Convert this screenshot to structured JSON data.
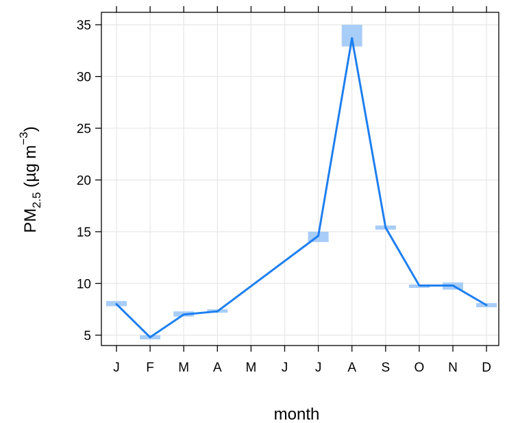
{
  "chart_data": {
    "type": "line",
    "title": "",
    "xlabel": "month",
    "ylabel": {
      "main": "PM",
      "sub": "2.5",
      "unit_open": " (µg m",
      "sup": "−3",
      "unit_close": ")"
    },
    "categories": [
      "J",
      "F",
      "M",
      "A",
      "M",
      "J",
      "J",
      "A",
      "S",
      "O",
      "N",
      "D"
    ],
    "series": [
      {
        "values": [
          8.0,
          4.8,
          7.0,
          7.3,
          null,
          null,
          14.6,
          33.7,
          15.4,
          9.8,
          9.8,
          7.9
        ],
        "uncertainty": [
          [
            7.8,
            8.3
          ],
          [
            4.6,
            5.0
          ],
          [
            6.8,
            7.3
          ],
          [
            7.2,
            7.5
          ],
          null,
          null,
          [
            14.0,
            15.0
          ],
          [
            32.9,
            35.0
          ],
          [
            15.2,
            15.6
          ],
          [
            9.7,
            9.9
          ],
          [
            9.4,
            10.1
          ],
          [
            7.7,
            8.1
          ]
        ]
      }
    ],
    "ylim": [
      4,
      36.2
    ],
    "yticks": [
      5,
      10,
      15,
      20,
      25,
      30,
      35
    ],
    "grid": true,
    "colors": {
      "line": "#1e7ff0",
      "band": "#a8cdf7",
      "grid": "#e6e6e6",
      "frame": "#000000"
    }
  }
}
